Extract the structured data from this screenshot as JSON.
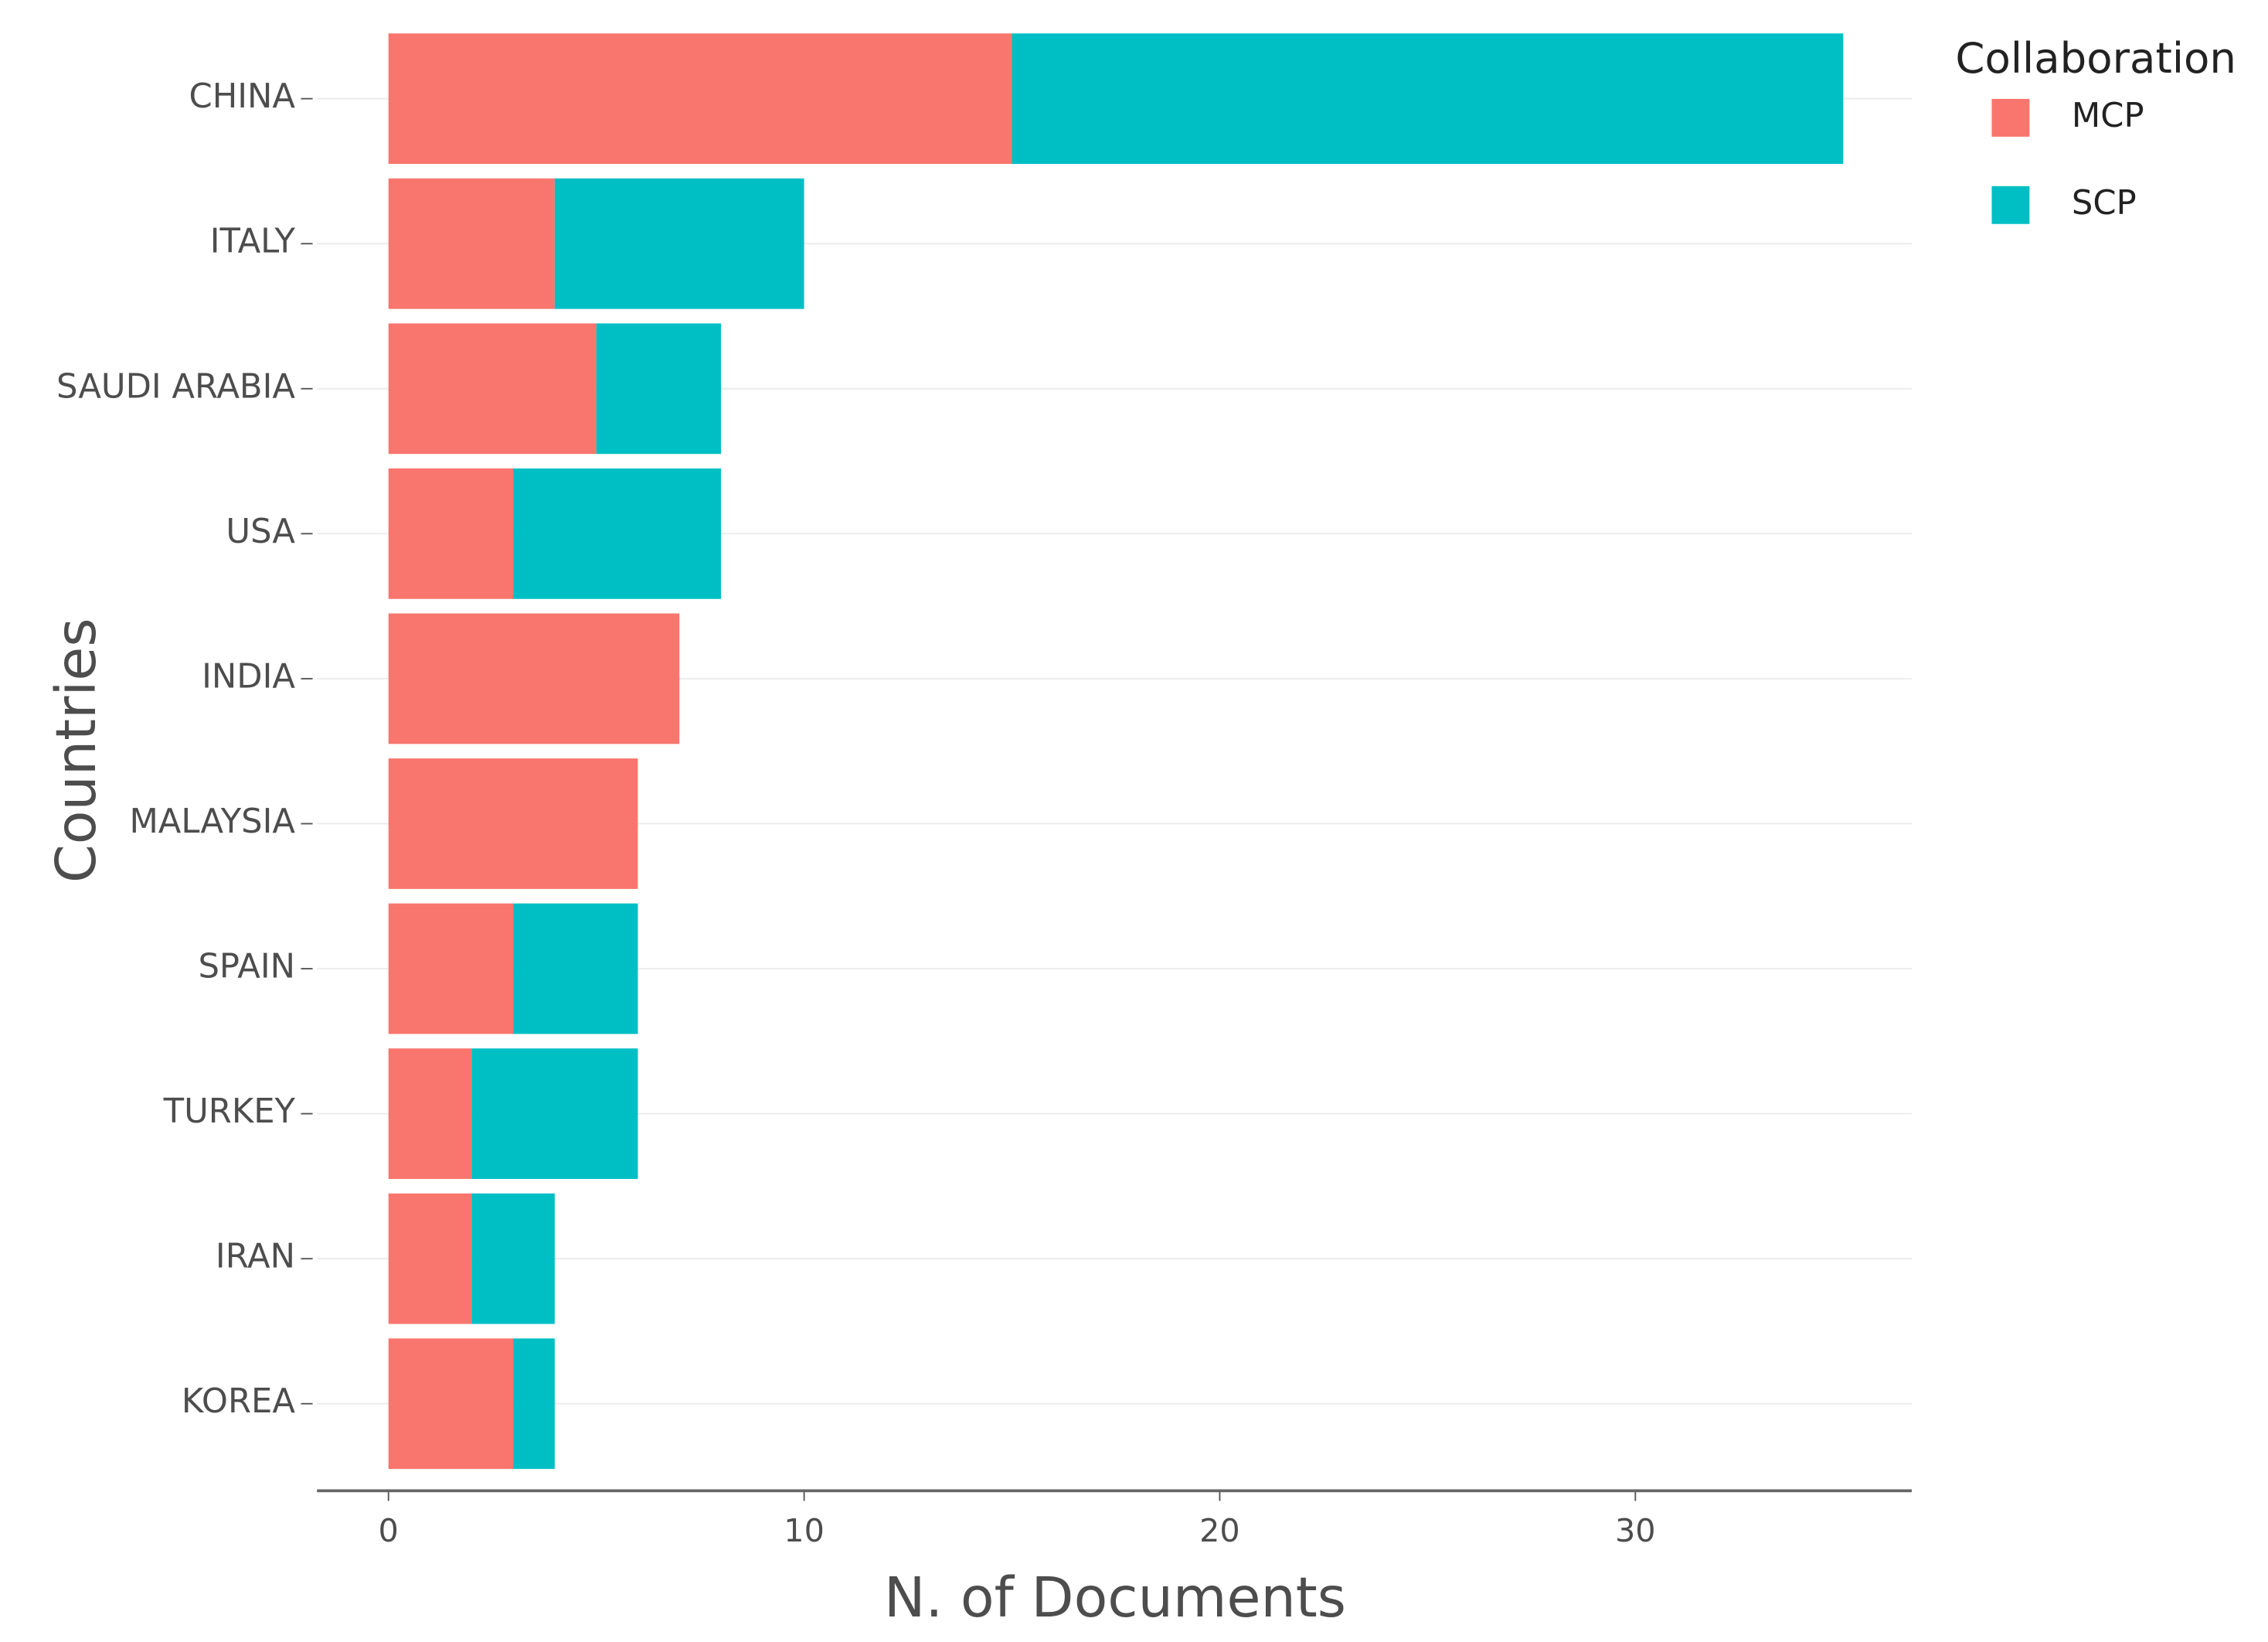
{
  "chart_data": {
    "type": "stacked_bar_horizontal",
    "x_label": "N. of Documents",
    "y_label": "Countries",
    "legend_title": "Collaboration",
    "categories": [
      "CHINA",
      "ITALY",
      "SAUDI ARABIA",
      "USA",
      "INDIA",
      "MALAYSIA",
      "SPAIN",
      "TURKEY",
      "IRAN",
      "KOREA"
    ],
    "series": [
      {
        "name": "MCP",
        "color": "#f8766d",
        "values": [
          15,
          4,
          5,
          3,
          7,
          6,
          3,
          2,
          2,
          3
        ]
      },
      {
        "name": "SCP",
        "color": "#00bfc4",
        "values": [
          20,
          6,
          3,
          5,
          0,
          0,
          3,
          4,
          2,
          1
        ]
      }
    ],
    "xlim": [
      -1.72,
      36.65
    ],
    "xticks": [
      0,
      10,
      20,
      30
    ],
    "grid": true,
    "legend_position": "right"
  }
}
